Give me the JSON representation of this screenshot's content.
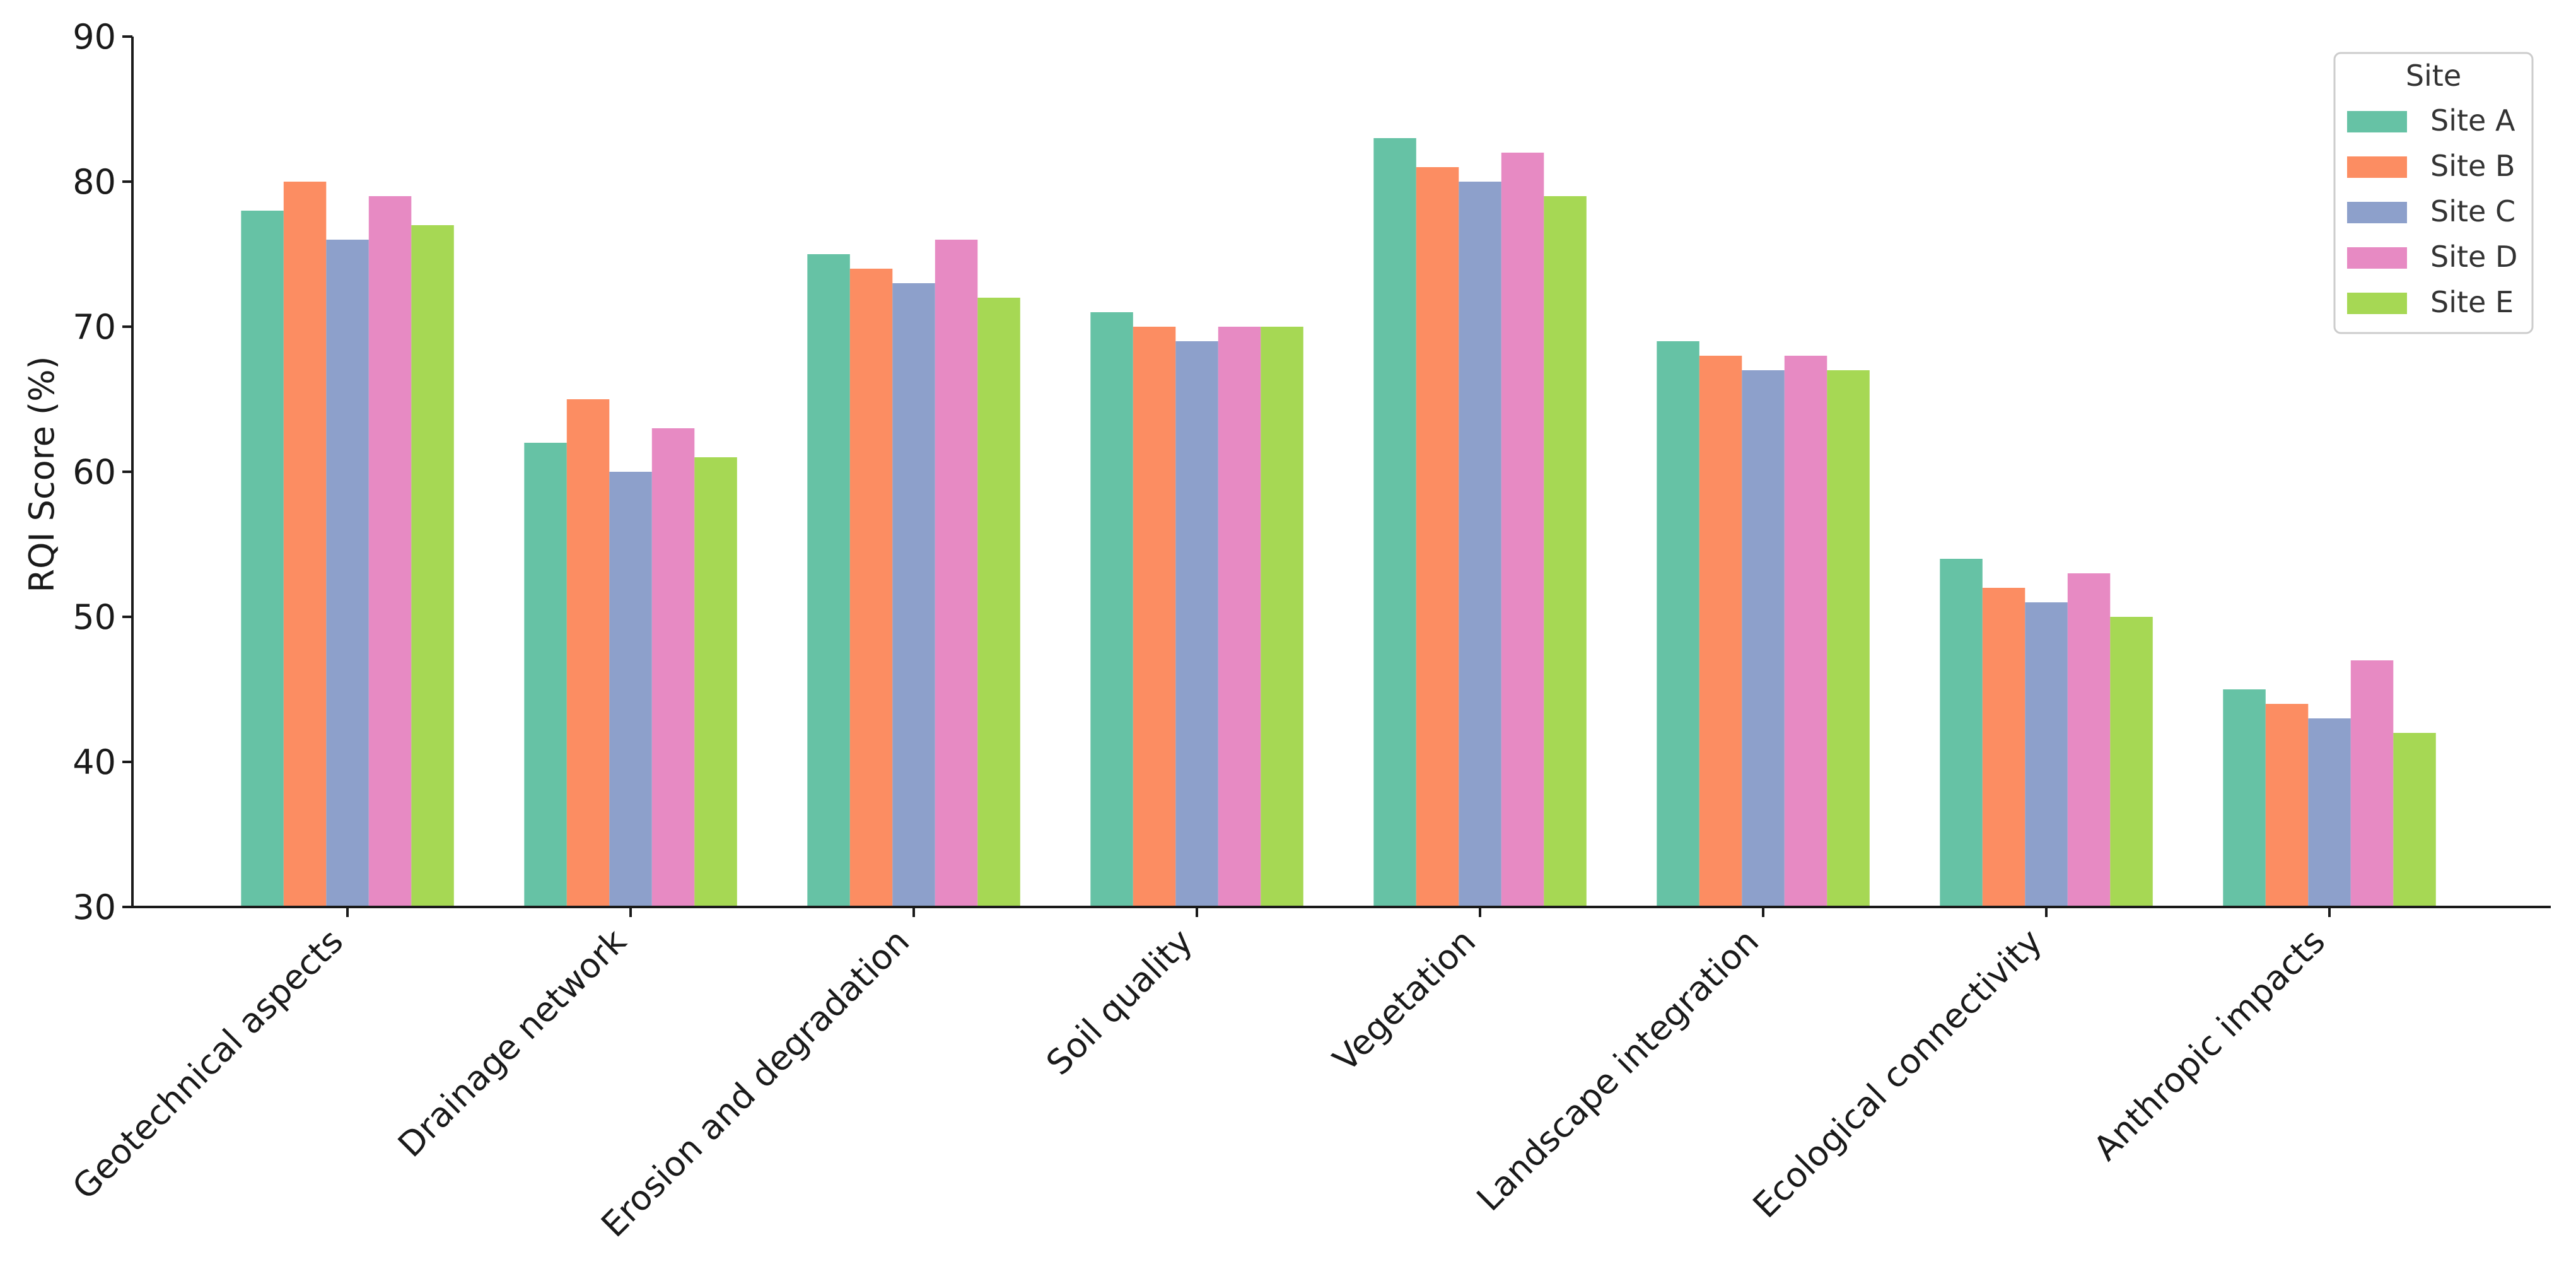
{
  "chart_data": {
    "type": "bar",
    "title": "",
    "xlabel": "",
    "ylabel": "RQI Score (%)",
    "ylim": [
      30,
      90
    ],
    "yticks": [
      30,
      40,
      50,
      60,
      70,
      80,
      90
    ],
    "grid": false,
    "legend": {
      "title": "Site",
      "placement": "top-right"
    },
    "categories": [
      "Geotechnical aspects",
      "Drainage network",
      "Erosion and degradation",
      "Soil quality",
      "Vegetation",
      "Landscape integration",
      "Ecological connectivity",
      "Anthropic impacts"
    ],
    "series": [
      {
        "name": "Site A",
        "color": "#66c2a5",
        "values": [
          78,
          62,
          75,
          71,
          83,
          69,
          54,
          45
        ]
      },
      {
        "name": "Site B",
        "color": "#fc8d62",
        "values": [
          80,
          65,
          74,
          70,
          81,
          68,
          52,
          44
        ]
      },
      {
        "name": "Site C",
        "color": "#8da0cb",
        "values": [
          76,
          60,
          73,
          69,
          80,
          67,
          51,
          43
        ]
      },
      {
        "name": "Site D",
        "color": "#e78ac3",
        "values": [
          79,
          63,
          76,
          70,
          82,
          68,
          53,
          47
        ]
      },
      {
        "name": "Site E",
        "color": "#a6d854",
        "values": [
          77,
          61,
          72,
          70,
          79,
          67,
          50,
          42
        ]
      }
    ]
  }
}
